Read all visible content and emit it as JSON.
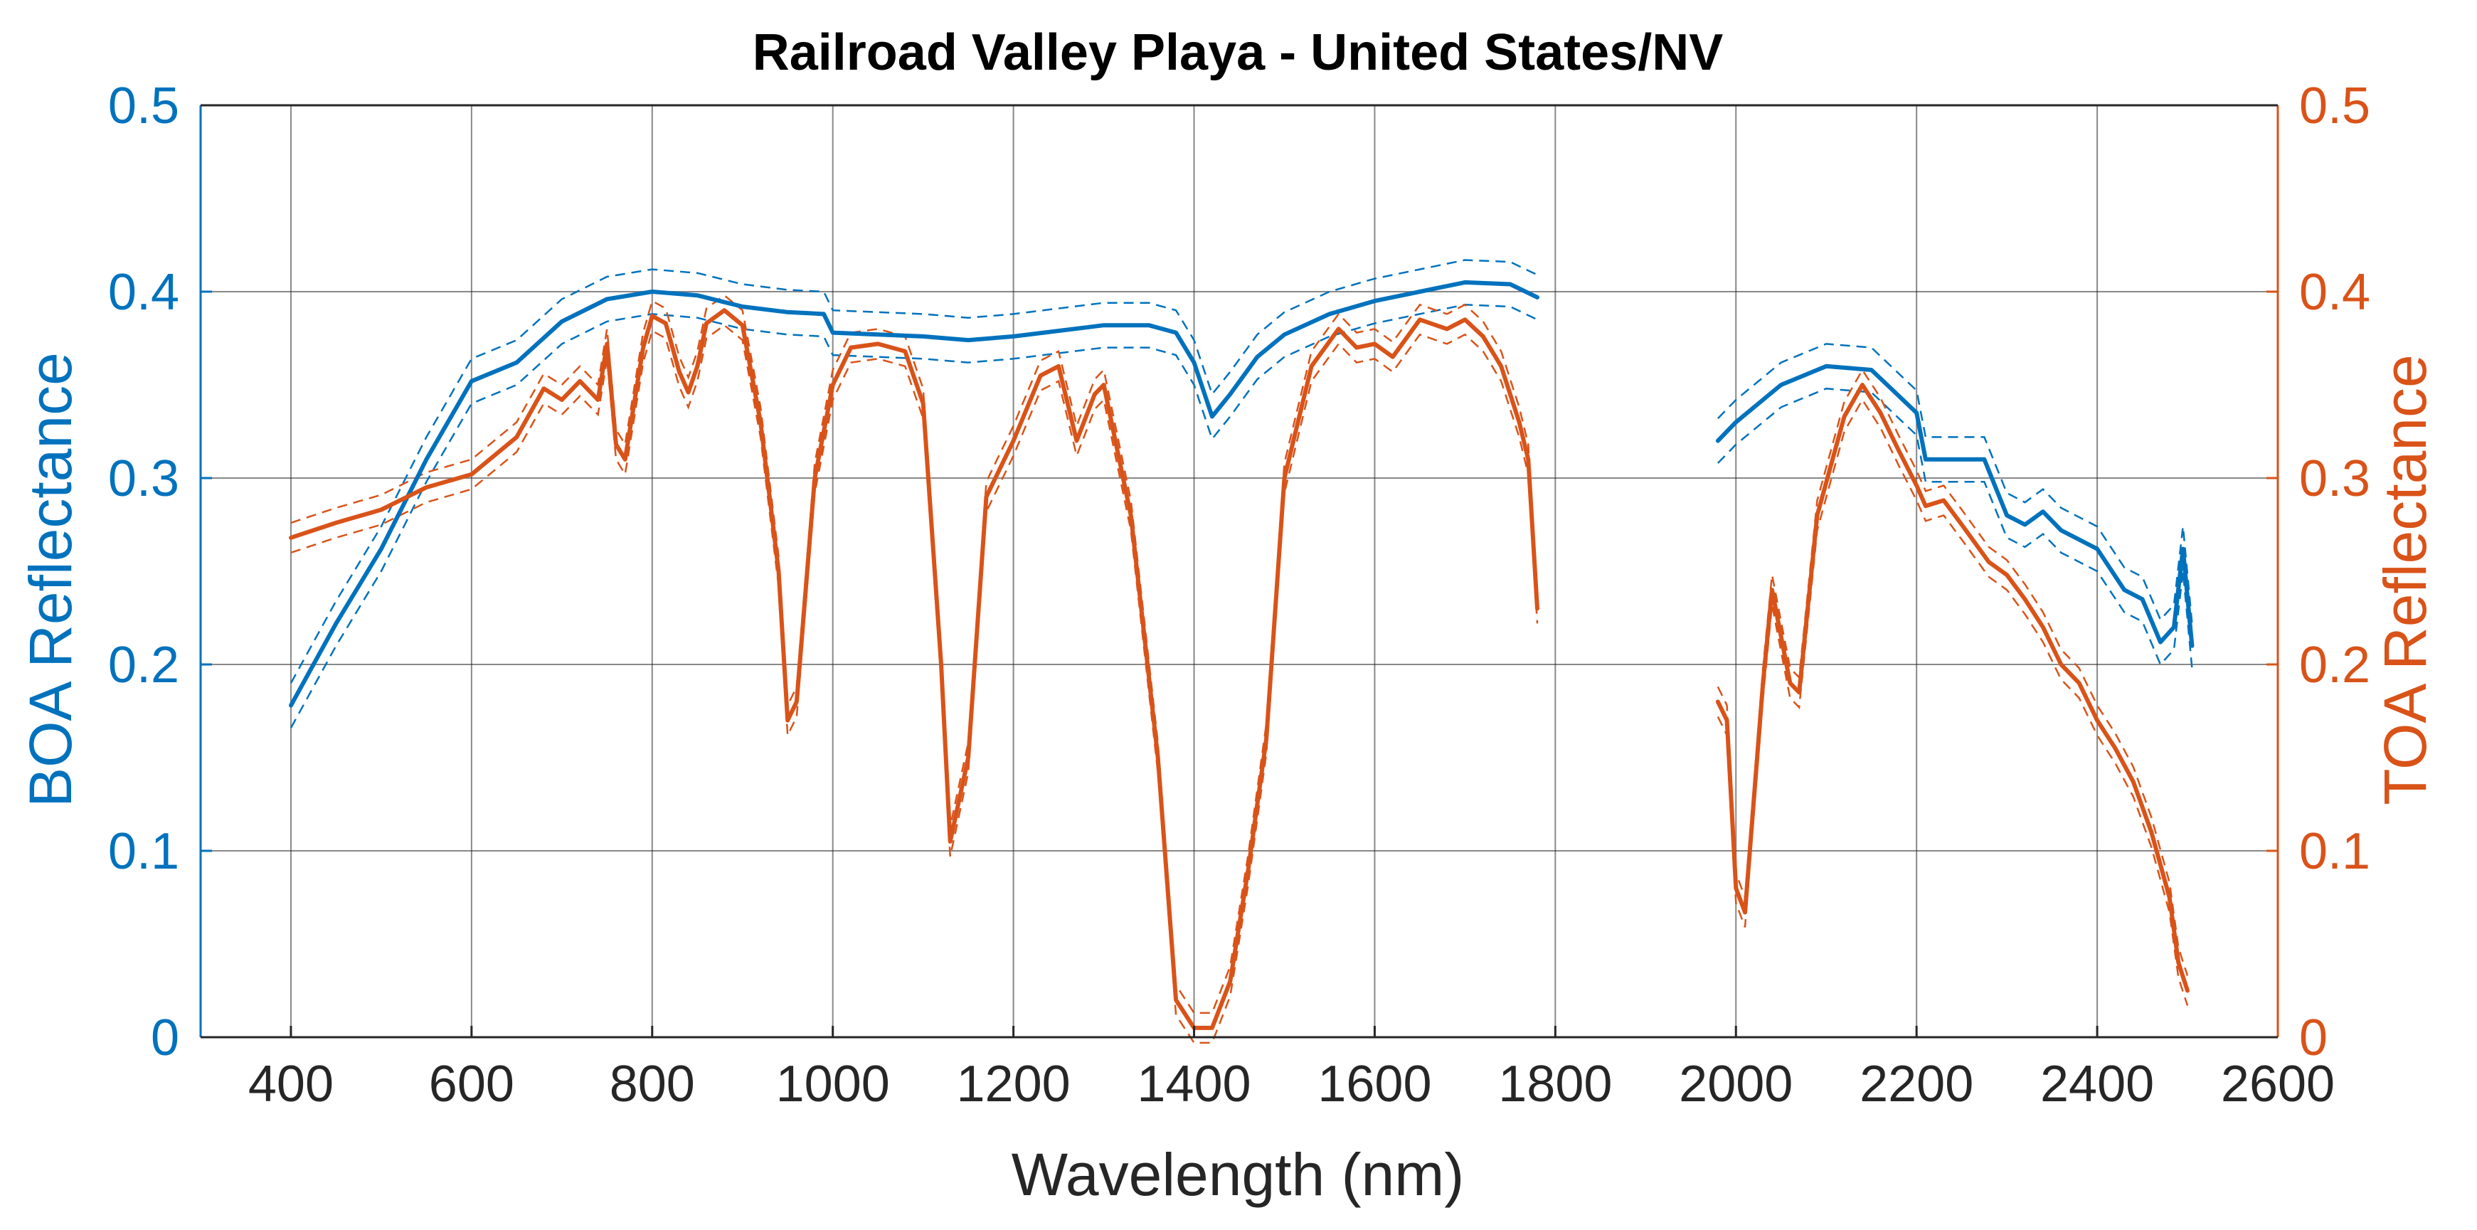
{
  "chart_data": {
    "type": "line",
    "title": "Railroad Valley Playa  - United States/NV",
    "xlabel": "Wavelength (nm)",
    "ylabel_left": "BOA Reflectance",
    "ylabel_right": "TOA Reflectance",
    "xlim": [
      300,
      2600
    ],
    "ylim_left": [
      0,
      0.5
    ],
    "ylim_right": [
      0,
      0.5
    ],
    "x_ticks": [
      400,
      600,
      800,
      1000,
      1200,
      1400,
      1600,
      1800,
      2000,
      2200,
      2400,
      2600
    ],
    "x_tick_labels": [
      "400",
      "600",
      "800",
      "1000",
      "1200",
      "1400",
      "1600",
      "1800",
      "2000",
      "2200",
      "2400",
      "2600"
    ],
    "y_ticks": [
      0,
      0.1,
      0.2,
      0.3,
      0.4,
      0.5
    ],
    "y_tick_labels": [
      "0",
      "0.1",
      "0.2",
      "0.3",
      "0.4",
      "0.5"
    ],
    "grid": true,
    "colors": {
      "boa": "#0072BD",
      "boa_axis": "#0072BD",
      "toa": "#D95319",
      "toa_axis": "#D95319"
    },
    "series": [
      {
        "name": "BOA Reflectance",
        "axis": "left",
        "style": "solid",
        "uncertainty_band": 0.012,
        "segments": [
          [
            [
              400,
              0.178
            ],
            [
              450,
              0.222
            ],
            [
              500,
              0.262
            ],
            [
              550,
              0.31
            ],
            [
              600,
              0.352
            ],
            [
              650,
              0.362
            ],
            [
              700,
              0.384
            ],
            [
              750,
              0.396
            ],
            [
              800,
              0.4
            ],
            [
              850,
              0.398
            ],
            [
              900,
              0.392
            ],
            [
              950,
              0.389
            ],
            [
              990,
              0.388
            ],
            [
              1000,
              0.378
            ],
            [
              1100,
              0.376
            ],
            [
              1150,
              0.374
            ],
            [
              1200,
              0.376
            ],
            [
              1300,
              0.382
            ],
            [
              1350,
              0.382
            ],
            [
              1380,
              0.378
            ],
            [
              1400,
              0.362
            ],
            [
              1420,
              0.333
            ],
            [
              1440,
              0.345
            ],
            [
              1470,
              0.365
            ],
            [
              1500,
              0.377
            ],
            [
              1550,
              0.388
            ],
            [
              1600,
              0.395
            ],
            [
              1650,
              0.4
            ],
            [
              1700,
              0.405
            ],
            [
              1750,
              0.404
            ],
            [
              1780,
              0.397
            ]
          ],
          [
            [
              1980,
              0.32
            ],
            [
              2000,
              0.33
            ],
            [
              2050,
              0.35
            ],
            [
              2100,
              0.36
            ],
            [
              2150,
              0.358
            ],
            [
              2200,
              0.335
            ],
            [
              2210,
              0.31
            ],
            [
              2250,
              0.31
            ],
            [
              2275,
              0.31
            ],
            [
              2300,
              0.28
            ],
            [
              2320,
              0.275
            ],
            [
              2340,
              0.282
            ],
            [
              2360,
              0.272
            ],
            [
              2400,
              0.262
            ],
            [
              2430,
              0.24
            ],
            [
              2450,
              0.235
            ],
            [
              2470,
              0.212
            ],
            [
              2485,
              0.22
            ],
            [
              2495,
              0.262
            ],
            [
              2505,
              0.21
            ]
          ]
        ]
      },
      {
        "name": "TOA Reflectance",
        "axis": "right",
        "style": "solid",
        "uncertainty_band": 0.008,
        "segments": [
          [
            [
              400,
              0.268
            ],
            [
              450,
              0.276
            ],
            [
              500,
              0.283
            ],
            [
              550,
              0.295
            ],
            [
              600,
              0.302
            ],
            [
              650,
              0.322
            ],
            [
              680,
              0.348
            ],
            [
              700,
              0.342
            ],
            [
              720,
              0.352
            ],
            [
              740,
              0.342
            ],
            [
              750,
              0.372
            ],
            [
              760,
              0.318
            ],
            [
              770,
              0.31
            ],
            [
              790,
              0.37
            ],
            [
              800,
              0.387
            ],
            [
              815,
              0.383
            ],
            [
              830,
              0.357
            ],
            [
              840,
              0.346
            ],
            [
              850,
              0.36
            ],
            [
              860,
              0.383
            ],
            [
              880,
              0.39
            ],
            [
              900,
              0.382
            ],
            [
              920,
              0.33
            ],
            [
              940,
              0.25
            ],
            [
              950,
              0.17
            ],
            [
              960,
              0.18
            ],
            [
              980,
              0.3
            ],
            [
              1000,
              0.35
            ],
            [
              1020,
              0.37
            ],
            [
              1050,
              0.372
            ],
            [
              1080,
              0.368
            ],
            [
              1100,
              0.34
            ],
            [
              1120,
              0.2
            ],
            [
              1130,
              0.105
            ],
            [
              1150,
              0.15
            ],
            [
              1170,
              0.29
            ],
            [
              1200,
              0.32
            ],
            [
              1230,
              0.355
            ],
            [
              1250,
              0.36
            ],
            [
              1270,
              0.32
            ],
            [
              1290,
              0.345
            ],
            [
              1300,
              0.35
            ],
            [
              1330,
              0.28
            ],
            [
              1360,
              0.15
            ],
            [
              1380,
              0.02
            ],
            [
              1400,
              0.005
            ],
            [
              1420,
              0.005
            ],
            [
              1440,
              0.03
            ],
            [
              1460,
              0.09
            ],
            [
              1480,
              0.16
            ],
            [
              1500,
              0.3
            ],
            [
              1530,
              0.36
            ],
            [
              1560,
              0.38
            ],
            [
              1580,
              0.37
            ],
            [
              1600,
              0.372
            ],
            [
              1620,
              0.365
            ],
            [
              1650,
              0.385
            ],
            [
              1680,
              0.38
            ],
            [
              1700,
              0.385
            ],
            [
              1720,
              0.376
            ],
            [
              1740,
              0.36
            ],
            [
              1760,
              0.33
            ],
            [
              1770,
              0.31
            ],
            [
              1780,
              0.23
            ]
          ],
          [
            [
              1980,
              0.18
            ],
            [
              1990,
              0.17
            ],
            [
              2000,
              0.08
            ],
            [
              2010,
              0.067
            ],
            [
              2030,
              0.19
            ],
            [
              2040,
              0.24
            ],
            [
              2060,
              0.19
            ],
            [
              2070,
              0.185
            ],
            [
              2090,
              0.28
            ],
            [
              2120,
              0.333
            ],
            [
              2140,
              0.35
            ],
            [
              2160,
              0.335
            ],
            [
              2180,
              0.315
            ],
            [
              2200,
              0.296
            ],
            [
              2210,
              0.285
            ],
            [
              2230,
              0.288
            ],
            [
              2250,
              0.275
            ],
            [
              2280,
              0.255
            ],
            [
              2300,
              0.248
            ],
            [
              2320,
              0.235
            ],
            [
              2340,
              0.22
            ],
            [
              2360,
              0.2
            ],
            [
              2380,
              0.19
            ],
            [
              2400,
              0.17
            ],
            [
              2420,
              0.155
            ],
            [
              2440,
              0.137
            ],
            [
              2460,
              0.11
            ],
            [
              2480,
              0.075
            ],
            [
              2490,
              0.04
            ],
            [
              2500,
              0.025
            ]
          ]
        ]
      }
    ]
  }
}
